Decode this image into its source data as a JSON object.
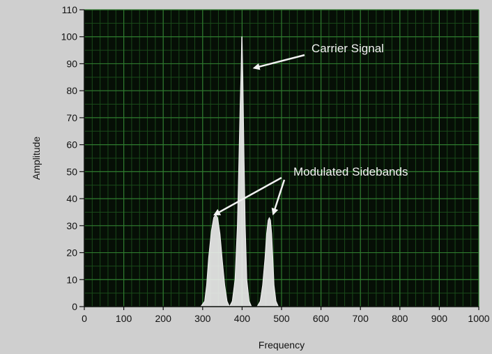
{
  "chart_data": {
    "type": "line",
    "title": "",
    "xlabel": "Frequency",
    "ylabel": "Amplitude",
    "xlim": [
      0,
      1000
    ],
    "ylim": [
      0,
      110
    ],
    "x_ticks": [
      0,
      100,
      200,
      300,
      400,
      500,
      600,
      700,
      800,
      900,
      1000
    ],
    "y_ticks": [
      0,
      10,
      20,
      30,
      40,
      50,
      60,
      70,
      80,
      90,
      100,
      110
    ],
    "x_tick_labels": [
      "0",
      "100",
      "200",
      "300",
      "400",
      "500",
      "600",
      "700",
      "800",
      "900",
      "1000"
    ],
    "y_tick_labels": [
      "0",
      "10",
      "20",
      "30",
      "40",
      "50",
      "60",
      "70",
      "80",
      "90",
      "100",
      "110"
    ],
    "grid": true,
    "series": [
      {
        "x": [
          295,
          305,
          310,
          315,
          322,
          328,
          333,
          338,
          344,
          350,
          356,
          362,
          368,
          375,
          382,
          388,
          392,
          395,
          397,
          398,
          399,
          400,
          401,
          402,
          403,
          405,
          408,
          412,
          418,
          424,
          430,
          438,
          446,
          452,
          458,
          462,
          466,
          469,
          472,
          475,
          478,
          481,
          486,
          492,
          500,
          510
        ],
        "y": [
          0,
          2,
          8,
          18,
          28,
          33,
          34,
          33,
          27,
          17,
          8,
          2,
          0,
          2,
          10,
          30,
          55,
          75,
          85,
          92,
          100,
          100,
          92,
          85,
          75,
          55,
          30,
          10,
          2,
          0,
          0,
          0,
          2,
          8,
          18,
          27,
          32,
          33,
          32,
          27,
          18,
          8,
          2,
          0,
          0,
          0
        ]
      }
    ],
    "annotations": [
      {
        "text": "Carrier Signal",
        "x": 395,
        "y": 91
      },
      {
        "text": "Modulated Sidebands",
        "x": 330,
        "y": 33,
        "x2": 470,
        "y2": 33
      }
    ],
    "colors": {
      "background": "#cfcfcf",
      "plot_area": "#060f06",
      "grid_minor": "#1a4a1a",
      "grid_major": "#2f7a2f",
      "trace": "#f0f0f0",
      "annotation": "#f2f2f2"
    }
  }
}
